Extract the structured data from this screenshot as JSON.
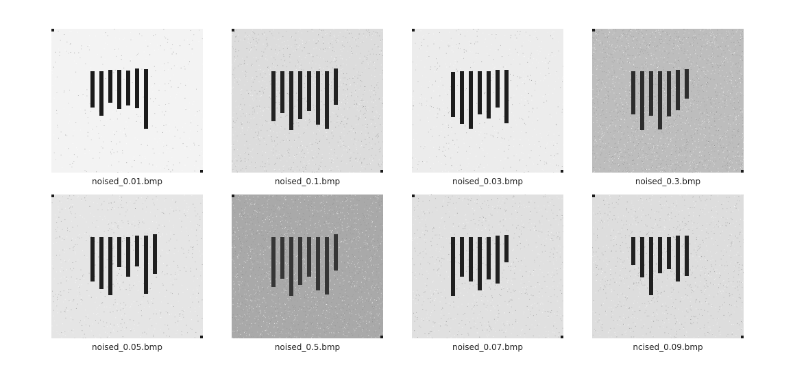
{
  "thumbnails": [
    {
      "filename": "noised_0.01.bmp",
      "noise_level": 0.01,
      "background": "#f3f3f3",
      "bar_color": "#1b1b1b"
    },
    {
      "filename": "noised_0.1.bmp",
      "noise_level": 0.1,
      "background": "#dcdcdc",
      "bar_color": "#222222"
    },
    {
      "filename": "noised_0.03.bmp",
      "noise_level": 0.03,
      "background": "#ececec",
      "bar_color": "#1d1d1d"
    },
    {
      "filename": "noised_0.3.bmp",
      "noise_level": 0.3,
      "background": "#bdbdbd",
      "bar_color": "#2d2d2d"
    },
    {
      "filename": "noised_0.05.bmp",
      "noise_level": 0.05,
      "background": "#e5e5e5",
      "bar_color": "#1f1f1f"
    },
    {
      "filename": "noised_0.5.bmp",
      "noise_level": 0.5,
      "background": "#a9a9a9",
      "bar_color": "#363636"
    },
    {
      "filename": "noised_0.07.bmp",
      "noise_level": 0.07,
      "background": "#e0e0e0",
      "bar_color": "#202020"
    },
    {
      "filename": "ncised_0.09.bmp",
      "noise_level": 0.09,
      "background": "#dddddd",
      "bar_color": "#212121"
    }
  ]
}
